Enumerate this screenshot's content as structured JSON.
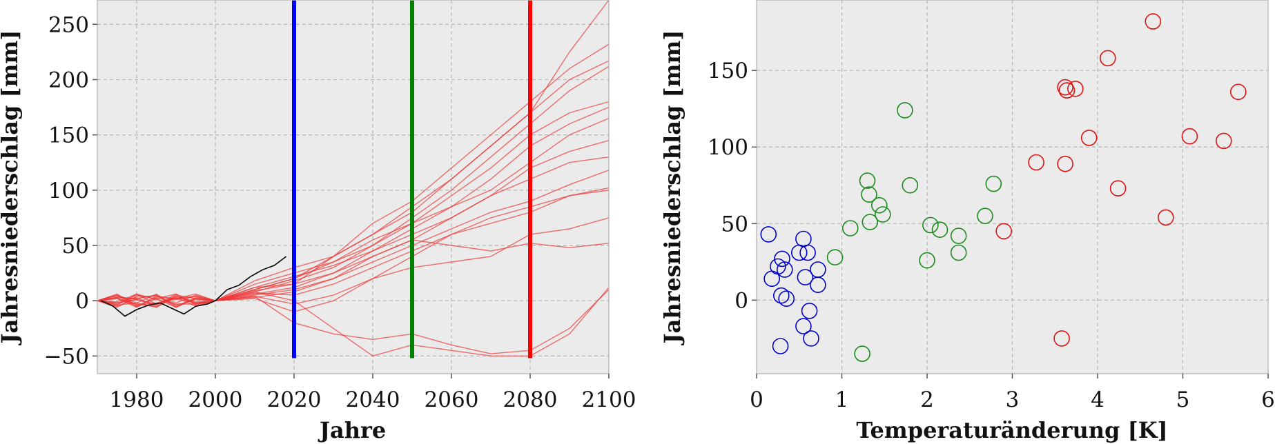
{
  "chart_data": [
    {
      "type": "line",
      "xlabel": "Jahre",
      "ylabel": "Jahresniederschlag [mm]",
      "xlim": [
        1970,
        2100
      ],
      "ylim": [
        -66,
        272
      ],
      "xticks": [
        "1980",
        "2000",
        "2020",
        "2040",
        "2060",
        "2080",
        "2100"
      ],
      "yticks": [
        "−50",
        "0",
        "50",
        "100",
        "150",
        "200",
        "250"
      ],
      "xtick_values": [
        1980,
        2000,
        2020,
        2040,
        2060,
        2080,
        2100
      ],
      "ytick_values": [
        -50,
        0,
        50,
        100,
        150,
        200,
        250
      ],
      "grid": true,
      "vertical_markers": [
        {
          "x": 2020,
          "color": "#0000ff"
        },
        {
          "x": 2050,
          "color": "#008000"
        },
        {
          "x": 2080,
          "color": "#ff0000"
        }
      ],
      "marker_y_range": [
        -52,
        272
      ],
      "observed": {
        "color": "#000000",
        "x": [
          1971,
          1974,
          1977,
          1980,
          1983,
          1986,
          1989,
          1992,
          1995,
          1998,
          2000,
          2003,
          2006,
          2009,
          2012,
          2015,
          2018
        ],
        "y": [
          0,
          -5,
          -14,
          -8,
          -4,
          -2,
          -7,
          -12,
          -5,
          -3,
          0,
          10,
          14,
          22,
          28,
          32,
          40
        ]
      },
      "ensemble_color": "#ee3333",
      "ensemble_x": [
        1970,
        1975,
        1980,
        1985,
        1990,
        1995,
        2000,
        2010,
        2020,
        2030,
        2040,
        2050,
        2060,
        2070,
        2080,
        2090,
        2100
      ],
      "ensemble": [
        [
          0,
          3,
          -5,
          2,
          6,
          -3,
          0,
          18,
          30,
          40,
          60,
          80,
          110,
          140,
          170,
          225,
          272
        ],
        [
          0,
          -4,
          6,
          -3,
          2,
          4,
          0,
          10,
          20,
          40,
          70,
          90,
          120,
          150,
          180,
          210,
          232
        ],
        [
          0,
          5,
          -2,
          6,
          -5,
          2,
          0,
          12,
          15,
          40,
          60,
          85,
          110,
          140,
          170,
          200,
          217
        ],
        [
          0,
          -2,
          3,
          -6,
          4,
          -2,
          0,
          8,
          18,
          30,
          50,
          75,
          100,
          130,
          160,
          190,
          212
        ],
        [
          0,
          2,
          -6,
          3,
          -2,
          5,
          0,
          15,
          25,
          35,
          50,
          70,
          95,
          120,
          150,
          170,
          180
        ],
        [
          0,
          -5,
          2,
          5,
          -4,
          1,
          0,
          6,
          12,
          25,
          45,
          65,
          85,
          110,
          140,
          160,
          175
        ],
        [
          0,
          4,
          1,
          -4,
          6,
          -4,
          0,
          10,
          20,
          35,
          55,
          70,
          85,
          100,
          125,
          150,
          165
        ],
        [
          0,
          -3,
          5,
          2,
          -6,
          3,
          0,
          5,
          10,
          20,
          40,
          55,
          75,
          95,
          120,
          135,
          145
        ],
        [
          0,
          6,
          -4,
          -2,
          3,
          -5,
          0,
          12,
          22,
          32,
          45,
          60,
          75,
          95,
          110,
          125,
          130
        ],
        [
          0,
          -6,
          4,
          4,
          2,
          -2,
          0,
          3,
          8,
          20,
          35,
          50,
          65,
          80,
          90,
          105,
          118
        ],
        [
          0,
          2,
          -3,
          -5,
          5,
          2,
          0,
          7,
          5,
          15,
          30,
          45,
          60,
          75,
          85,
          95,
          100
        ],
        [
          0,
          -1,
          6,
          1,
          -3,
          -3,
          0,
          4,
          -3,
          5,
          20,
          40,
          60,
          70,
          80,
          95,
          102
        ],
        [
          0,
          5,
          -5,
          4,
          1,
          4,
          0,
          9,
          15,
          25,
          40,
          55,
          50,
          45,
          52,
          48,
          52
        ],
        [
          0,
          -4,
          -2,
          -6,
          4,
          -1,
          0,
          2,
          -10,
          0,
          20,
          30,
          35,
          40,
          60,
          65,
          75
        ],
        [
          0,
          3,
          2,
          5,
          -6,
          2,
          0,
          4,
          -20,
          -30,
          -35,
          -30,
          -40,
          -48,
          -45,
          -25,
          10
        ],
        [
          0,
          -2,
          1,
          -3,
          2,
          6,
          0,
          8,
          0,
          -25,
          -50,
          -40,
          -45,
          -50,
          -50,
          -30,
          12
        ]
      ]
    },
    {
      "type": "scatter",
      "xlabel": "Temperaturänderung [K]",
      "ylabel": "Jahresniederschlag [mm]",
      "xlim": [
        0,
        6
      ],
      "ylim": [
        -48,
        196
      ],
      "xticks": [
        "0",
        "1",
        "2",
        "3",
        "4",
        "5",
        "6"
      ],
      "yticks": [
        "0",
        "50",
        "100",
        "150"
      ],
      "xtick_values": [
        0,
        1,
        2,
        3,
        4,
        5,
        6
      ],
      "ytick_values": [
        0,
        50,
        100,
        150
      ],
      "grid": true,
      "series": [
        {
          "color": "#0000cc",
          "points": [
            [
              0.14,
              43
            ],
            [
              0.18,
              14
            ],
            [
              0.25,
              22
            ],
            [
              0.3,
              27
            ],
            [
              0.33,
              20
            ],
            [
              0.55,
              40
            ],
            [
              0.5,
              31
            ],
            [
              0.57,
              15
            ],
            [
              0.6,
              31
            ],
            [
              0.72,
              20
            ],
            [
              0.72,
              10
            ],
            [
              0.29,
              3
            ],
            [
              0.35,
              1
            ],
            [
              0.62,
              -7
            ],
            [
              0.55,
              -17
            ],
            [
              0.64,
              -25
            ],
            [
              0.28,
              -30
            ]
          ]
        },
        {
          "color": "#1a8a1a",
          "points": [
            [
              0.92,
              28
            ],
            [
              1.1,
              47
            ],
            [
              1.3,
              78
            ],
            [
              1.32,
              69
            ],
            [
              1.33,
              51
            ],
            [
              1.44,
              62
            ],
            [
              1.48,
              56
            ],
            [
              1.74,
              124
            ],
            [
              1.8,
              75
            ],
            [
              2.0,
              26
            ],
            [
              2.04,
              49
            ],
            [
              2.15,
              46
            ],
            [
              2.37,
              42
            ],
            [
              2.37,
              31
            ],
            [
              2.68,
              55
            ],
            [
              2.78,
              76
            ],
            [
              1.24,
              -35
            ]
          ]
        },
        {
          "color": "#dd1111",
          "points": [
            [
              2.9,
              45
            ],
            [
              3.28,
              90
            ],
            [
              3.58,
              -25
            ],
            [
              3.62,
              139
            ],
            [
              3.64,
              137
            ],
            [
              3.74,
              138
            ],
            [
              3.62,
              89
            ],
            [
              3.9,
              106
            ],
            [
              4.24,
              73
            ],
            [
              4.12,
              158
            ],
            [
              4.65,
              182
            ],
            [
              4.8,
              54
            ],
            [
              5.08,
              107
            ],
            [
              5.48,
              104
            ],
            [
              5.65,
              136
            ]
          ]
        }
      ]
    }
  ]
}
